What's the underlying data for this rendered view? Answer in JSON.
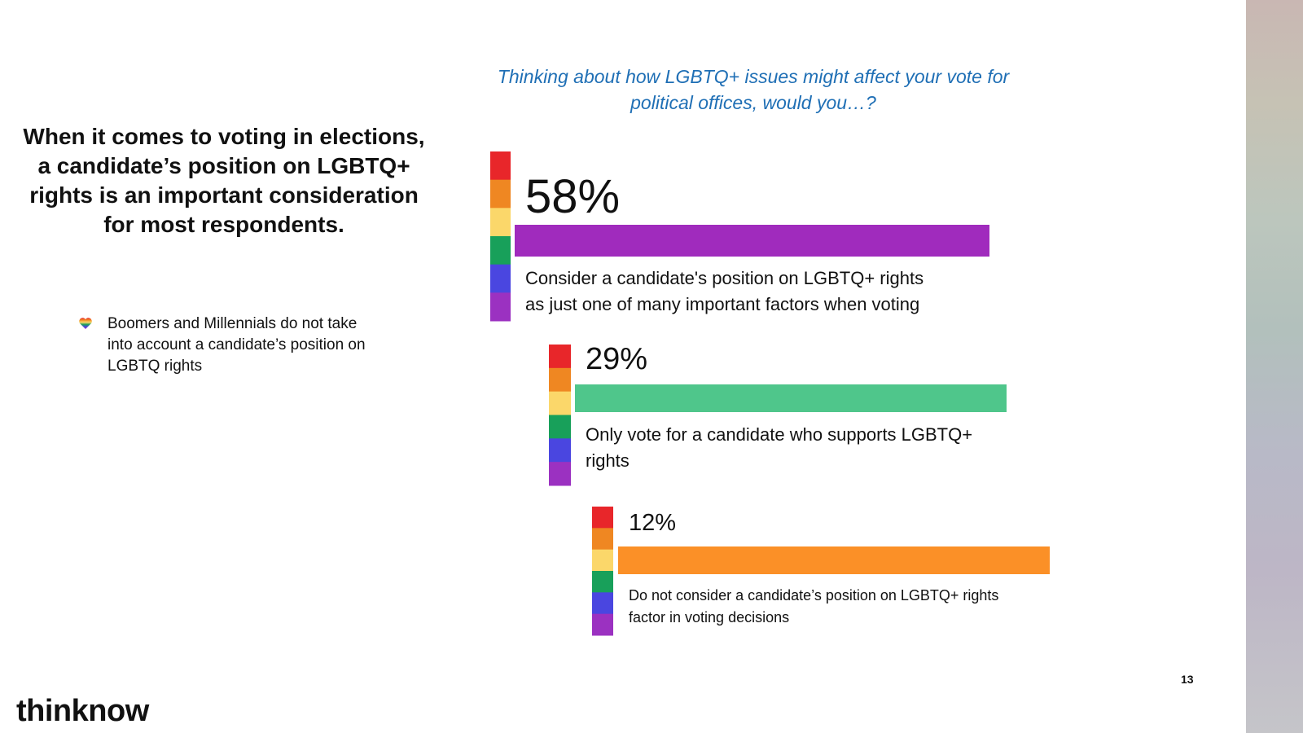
{
  "headline": "When it comes to voting in elections, a candidate’s position on LGBTQ+ rights is an important consideration for most respondents.",
  "bullet": {
    "icon": "rainbow-heart-icon",
    "text": "Boomers and Millennials do not take into account  a candidate’s position on LGBTQ rights"
  },
  "question": "Thinking about how LGBTQ+ issues might affect your vote for political offices, would you…?",
  "rainbow_colors": [
    "#e8262a",
    "#ef8722",
    "#fbd76a",
    "#18a05a",
    "#4a46e0",
    "#9b31c1"
  ],
  "chart_data": {
    "type": "bar",
    "title": "Thinking about how LGBTQ+ issues might affect your vote for political offices, would you…?",
    "unit": "%",
    "categories": [
      "Consider a candidate's position on LGBTQ+ rights as just one of many important factors when voting",
      "Only vote for a candidate who supports LGBTQ+ rights",
      "Do not consider a candidate’s position on LGBTQ+ rights factor in voting decisions"
    ],
    "values": [
      58,
      29,
      12
    ],
    "value_labels": [
      "58%",
      "29%",
      "12%"
    ],
    "colors": [
      "#a02bbd",
      "#4fc68b",
      "#fb9027"
    ]
  },
  "page_number": "13",
  "brand": "thinknow"
}
